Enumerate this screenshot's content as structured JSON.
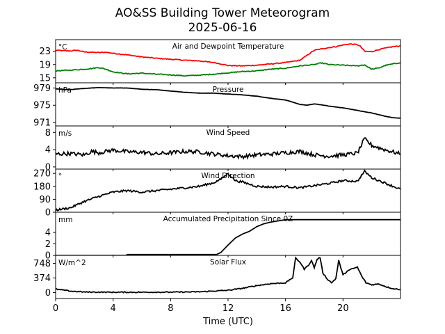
{
  "figure": {
    "title": "AO&SS Building Tower Meteorogram",
    "subtitle": "2025-06-16",
    "xlabel": "Time (UTC)",
    "xticks": [
      0,
      4,
      8,
      12,
      16,
      20
    ],
    "xlim": [
      0,
      24
    ]
  },
  "chart_data": [
    {
      "type": "line",
      "title": "Air and Dewpoint Temperature",
      "ylabel": "°C",
      "ylim": [
        13.5,
        26.5
      ],
      "yticks": [
        15,
        19,
        23
      ],
      "series": [
        {
          "color": "#ff0000",
          "x": [
            0,
            0.5,
            1,
            1.5,
            2,
            2.5,
            3,
            3.5,
            4,
            5,
            6,
            7,
            8,
            9,
            10,
            11,
            11.5,
            12,
            13,
            14,
            15,
            16,
            17,
            17.5,
            18,
            19,
            19.5,
            20,
            20.5,
            21,
            21.2,
            21.5,
            22,
            22.5,
            23,
            23.5,
            24
          ],
          "y": [
            23.3,
            23.2,
            23.1,
            23.3,
            22.8,
            22.7,
            22.6,
            22.7,
            22.4,
            21.9,
            21.3,
            20.9,
            20.6,
            20.3,
            20.1,
            19.6,
            19.2,
            18.7,
            18.6,
            18.8,
            19.2,
            19.6,
            20.3,
            21.8,
            23.3,
            24.1,
            24.4,
            24.9,
            25.2,
            25.0,
            24.5,
            23.0,
            22.9,
            23.5,
            24.0,
            24.4,
            24.6
          ]
        },
        {
          "color": "#008000",
          "x": [
            0,
            1,
            2,
            2.5,
            3,
            3.5,
            4,
            5,
            6,
            7,
            8,
            9,
            10,
            11,
            12,
            13,
            14,
            15,
            16,
            17,
            18,
            18.5,
            19,
            20,
            21,
            21.5,
            22,
            22.5,
            23,
            23.5,
            24
          ],
          "y": [
            17.1,
            17.3,
            17.6,
            17.8,
            18.1,
            17.6,
            16.8,
            16.2,
            16.4,
            16.1,
            15.9,
            15.6,
            15.8,
            16.1,
            16.5,
            16.9,
            17.1,
            17.6,
            17.9,
            18.6,
            19.0,
            19.5,
            19.0,
            18.8,
            18.6,
            18.9,
            17.6,
            18.0,
            18.8,
            19.2,
            19.6
          ]
        }
      ]
    },
    {
      "type": "line",
      "title": "Pressure",
      "ylabel": "hPa",
      "ylim": [
        970.2,
        980.2
      ],
      "yticks": [
        971,
        975,
        979
      ],
      "series": [
        {
          "color": "#000000",
          "x": [
            0,
            1,
            2,
            3,
            4,
            5,
            6,
            7,
            8,
            9,
            10,
            11,
            12,
            13,
            14,
            15,
            16,
            16.5,
            17,
            17.5,
            18,
            18.5,
            19,
            20,
            21,
            22,
            22.5,
            23,
            23.5,
            24
          ],
          "y": [
            978.8,
            978.6,
            978.9,
            979.1,
            979.0,
            979.0,
            978.7,
            978.6,
            978.3,
            978.0,
            977.8,
            977.8,
            977.6,
            977.4,
            977.1,
            976.6,
            976.2,
            975.7,
            975.2,
            975.0,
            975.3,
            975.1,
            974.8,
            974.4,
            973.8,
            973.2,
            972.8,
            972.4,
            972.1,
            972.0
          ]
        }
      ]
    },
    {
      "type": "line",
      "title": "Wind Speed",
      "ylabel": "m/s",
      "ylim": [
        -0.5,
        9.5
      ],
      "yticks": [
        0,
        4,
        8
      ],
      "series": [
        {
          "color": "#000000",
          "x": [
            0,
            1,
            2,
            2.5,
            3,
            4,
            5,
            6,
            7,
            8,
            9,
            10,
            11,
            12,
            13,
            14,
            15,
            16,
            17,
            18,
            19,
            20,
            21,
            21.5,
            22,
            23,
            24
          ],
          "y": [
            3.0,
            3.1,
            2.8,
            3.6,
            3.3,
            3.9,
            3.5,
            3.4,
            3.0,
            3.3,
            3.6,
            3.5,
            3.0,
            2.6,
            2.4,
            2.8,
            3.0,
            3.3,
            3.6,
            2.8,
            2.5,
            2.8,
            3.2,
            6.5,
            5.0,
            3.9,
            3.0
          ]
        }
      ]
    },
    {
      "type": "line",
      "title": "Wind Direction",
      "ylabel": "°",
      "ylim": [
        0,
        300
      ],
      "yticks": [
        0,
        90,
        180,
        270
      ],
      "series": [
        {
          "color": "#000000",
          "x": [
            0,
            1,
            2,
            3,
            4,
            5,
            6,
            7,
            8,
            9,
            10,
            11,
            11.5,
            12,
            12.5,
            13,
            14,
            15,
            16,
            17,
            18,
            19,
            20,
            21,
            21.5,
            22,
            23,
            24
          ],
          "y": [
            15,
            30,
            75,
            110,
            140,
            150,
            140,
            150,
            160,
            170,
            180,
            205,
            230,
            270,
            220,
            210,
            180,
            175,
            180,
            170,
            185,
            200,
            220,
            215,
            285,
            240,
            200,
            160
          ]
        }
      ]
    },
    {
      "type": "line",
      "title": "Accumulated Precipitation Since 0Z",
      "ylabel": "mm",
      "ylim": [
        0,
        7.5
      ],
      "yticks": [
        0,
        2,
        4
      ],
      "series": [
        {
          "color": "#000000",
          "x": [
            0,
            4.9,
            5.0,
            11.2,
            11.5,
            12,
            12.5,
            13,
            13.5,
            14,
            14.5,
            15,
            15.5,
            16,
            16.5,
            17,
            24
          ],
          "y": [
            0,
            0,
            0.15,
            0.15,
            0.5,
            1.8,
            3.0,
            3.7,
            4.2,
            5.0,
            5.5,
            5.8,
            6.0,
            6.2,
            6.2,
            6.2,
            6.2
          ]
        }
      ]
    },
    {
      "type": "line",
      "title": "Solar Flux",
      "ylabel": "W/m^2",
      "ylim": [
        -150,
        950
      ],
      "yticks": [
        0,
        374,
        748
      ],
      "series": [
        {
          "color": "#000000",
          "x": [
            0,
            1,
            2,
            4,
            6,
            8,
            10,
            12,
            13,
            14,
            15,
            16,
            16.5,
            16.7,
            17,
            17.3,
            17.6,
            17.8,
            18,
            18.2,
            18.4,
            18.6,
            18.9,
            19.2,
            19.5,
            19.7,
            20,
            20.3,
            20.6,
            21,
            21.3,
            21.6,
            22,
            22.5,
            23,
            23.5,
            24
          ],
          "y": [
            90,
            40,
            15,
            10,
            10,
            12,
            20,
            60,
            110,
            180,
            230,
            250,
            380,
            880,
            780,
            600,
            700,
            820,
            640,
            850,
            900,
            500,
            350,
            250,
            360,
            820,
            450,
            550,
            600,
            650,
            420,
            250,
            200,
            220,
            150,
            100,
            80
          ]
        }
      ]
    }
  ]
}
